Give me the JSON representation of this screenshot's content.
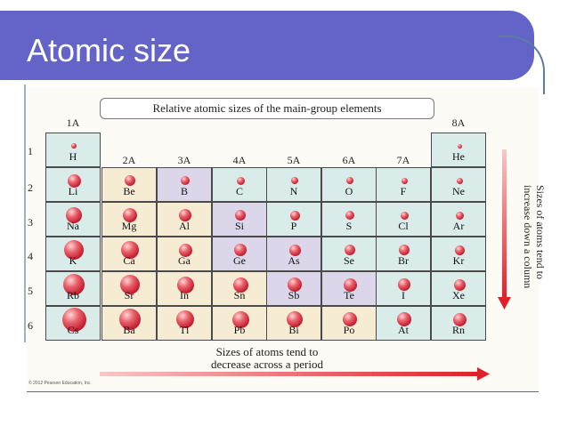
{
  "slide": {
    "title": "Atomic size"
  },
  "figure": {
    "caption": "Relative atomic sizes of the main-group elements",
    "group_labels": [
      "1A",
      "2A",
      "3A",
      "4A",
      "5A",
      "6A",
      "7A",
      "8A"
    ],
    "period_labels": [
      "1",
      "2",
      "3",
      "4",
      "5",
      "6"
    ],
    "bottom_caption_line1": "Sizes of atoms tend to",
    "bottom_caption_line2": "decrease across a period",
    "side_caption_line1": "Sizes of atoms tend to",
    "side_caption_line2": "increase down a column",
    "copyright": "© 2012 Pearson Education, Inc.",
    "colors": {
      "teal_cell": "#d9ecea",
      "cream_cell": "#f6ecd4",
      "purple_cell": "#dcd6ea",
      "arrow": "#e0202a"
    },
    "elements": [
      {
        "symbol": "H",
        "group": 1,
        "period": 1,
        "size": 6,
        "fill": "teal"
      },
      {
        "symbol": "He",
        "group": 8,
        "period": 1,
        "size": 5,
        "fill": "teal"
      },
      {
        "symbol": "Li",
        "group": 1,
        "period": 2,
        "size": 15,
        "fill": "teal"
      },
      {
        "symbol": "Be",
        "group": 2,
        "period": 2,
        "size": 12,
        "fill": "cream"
      },
      {
        "symbol": "B",
        "group": 3,
        "period": 2,
        "size": 10,
        "fill": "purple"
      },
      {
        "symbol": "C",
        "group": 4,
        "period": 2,
        "size": 9,
        "fill": "teal"
      },
      {
        "symbol": "N",
        "group": 5,
        "period": 2,
        "size": 8,
        "fill": "teal"
      },
      {
        "symbol": "O",
        "group": 6,
        "period": 2,
        "size": 8,
        "fill": "teal"
      },
      {
        "symbol": "F",
        "group": 7,
        "period": 2,
        "size": 7,
        "fill": "teal"
      },
      {
        "symbol": "Ne",
        "group": 8,
        "period": 2,
        "size": 7,
        "fill": "teal"
      },
      {
        "symbol": "Na",
        "group": 1,
        "period": 3,
        "size": 18,
        "fill": "teal"
      },
      {
        "symbol": "Mg",
        "group": 2,
        "period": 3,
        "size": 16,
        "fill": "cream"
      },
      {
        "symbol": "Al",
        "group": 3,
        "period": 3,
        "size": 14,
        "fill": "cream"
      },
      {
        "symbol": "Si",
        "group": 4,
        "period": 3,
        "size": 12,
        "fill": "purple"
      },
      {
        "symbol": "P",
        "group": 5,
        "period": 3,
        "size": 11,
        "fill": "teal"
      },
      {
        "symbol": "S",
        "group": 6,
        "period": 3,
        "size": 10,
        "fill": "teal"
      },
      {
        "symbol": "Cl",
        "group": 7,
        "period": 3,
        "size": 9,
        "fill": "teal"
      },
      {
        "symbol": "Ar",
        "group": 8,
        "period": 3,
        "size": 9,
        "fill": "teal"
      },
      {
        "symbol": "K",
        "group": 1,
        "period": 4,
        "size": 22,
        "fill": "teal"
      },
      {
        "symbol": "Ca",
        "group": 2,
        "period": 4,
        "size": 20,
        "fill": "cream"
      },
      {
        "symbol": "Ga",
        "group": 3,
        "period": 4,
        "size": 15,
        "fill": "cream"
      },
      {
        "symbol": "Ge",
        "group": 4,
        "period": 4,
        "size": 14,
        "fill": "purple"
      },
      {
        "symbol": "As",
        "group": 5,
        "period": 4,
        "size": 13,
        "fill": "purple"
      },
      {
        "symbol": "Se",
        "group": 6,
        "period": 4,
        "size": 12,
        "fill": "teal"
      },
      {
        "symbol": "Br",
        "group": 7,
        "period": 4,
        "size": 12,
        "fill": "teal"
      },
      {
        "symbol": "Kr",
        "group": 8,
        "period": 4,
        "size": 11,
        "fill": "teal"
      },
      {
        "symbol": "Rb",
        "group": 1,
        "period": 5,
        "size": 24,
        "fill": "teal"
      },
      {
        "symbol": "Sr",
        "group": 2,
        "period": 5,
        "size": 22,
        "fill": "cream"
      },
      {
        "symbol": "In",
        "group": 3,
        "period": 5,
        "size": 19,
        "fill": "cream"
      },
      {
        "symbol": "Sn",
        "group": 4,
        "period": 5,
        "size": 17,
        "fill": "cream"
      },
      {
        "symbol": "Sb",
        "group": 5,
        "period": 5,
        "size": 16,
        "fill": "purple"
      },
      {
        "symbol": "Te",
        "group": 6,
        "period": 5,
        "size": 15,
        "fill": "purple"
      },
      {
        "symbol": "I",
        "group": 7,
        "period": 5,
        "size": 14,
        "fill": "teal"
      },
      {
        "symbol": "Xe",
        "group": 8,
        "period": 5,
        "size": 13,
        "fill": "teal"
      },
      {
        "symbol": "Cs",
        "group": 1,
        "period": 6,
        "size": 27,
        "fill": "teal"
      },
      {
        "symbol": "Ba",
        "group": 2,
        "period": 6,
        "size": 24,
        "fill": "cream"
      },
      {
        "symbol": "Tl",
        "group": 3,
        "period": 6,
        "size": 20,
        "fill": "cream"
      },
      {
        "symbol": "Pb",
        "group": 4,
        "period": 6,
        "size": 19,
        "fill": "cream"
      },
      {
        "symbol": "Bi",
        "group": 5,
        "period": 6,
        "size": 18,
        "fill": "cream"
      },
      {
        "symbol": "Po",
        "group": 6,
        "period": 6,
        "size": 16,
        "fill": "cream"
      },
      {
        "symbol": "At",
        "group": 7,
        "period": 6,
        "size": 16,
        "fill": "teal"
      },
      {
        "symbol": "Rn",
        "group": 8,
        "period": 6,
        "size": 15,
        "fill": "teal"
      }
    ]
  }
}
